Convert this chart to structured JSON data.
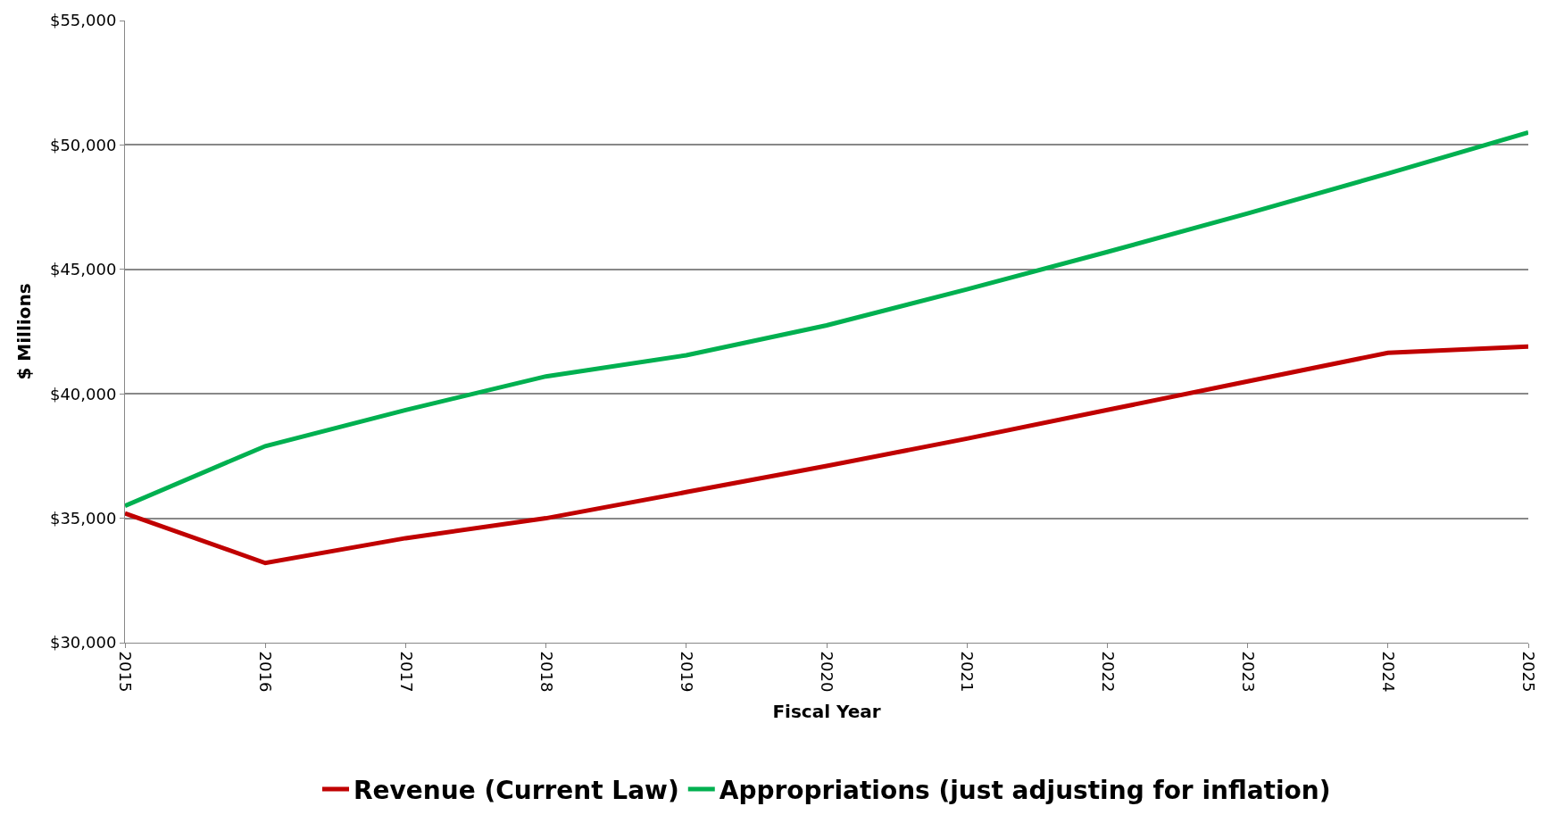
{
  "chart_data": {
    "type": "line",
    "xlabel": "Fiscal Year",
    "ylabel": "$ Millions",
    "x": [
      2015,
      2016,
      2017,
      2018,
      2019,
      2020,
      2021,
      2022,
      2023,
      2024,
      2025
    ],
    "series": [
      {
        "name": "Revenue (Current Law)",
        "color": "#c00000",
        "values": [
          35200,
          33200,
          34200,
          35000,
          36050,
          37100,
          38200,
          39350,
          40500,
          41650,
          41900
        ]
      },
      {
        "name": "Appropriations (just adjusting for inflation)",
        "color": "#00b050",
        "values": [
          35500,
          37900,
          39350,
          40700,
          41550,
          42750,
          44200,
          45700,
          47250,
          48850,
          50500
        ]
      }
    ],
    "xlim": [
      2015,
      2025
    ],
    "xticks": [
      2015,
      2016,
      2017,
      2018,
      2019,
      2020,
      2021,
      2022,
      2023,
      2024,
      2025
    ],
    "ylim": [
      30000,
      55000
    ],
    "yticks": [
      {
        "value": 30000,
        "label": "$30,000"
      },
      {
        "value": 35000,
        "label": "$35,000"
      },
      {
        "value": 40000,
        "label": "$40,000"
      },
      {
        "value": 45000,
        "label": "$45,000"
      },
      {
        "value": 50000,
        "label": "$50,000"
      },
      {
        "value": 55000,
        "label": "$55,000"
      }
    ],
    "grid": "y",
    "legend": "bottom",
    "marker": "none",
    "line_style": "solid"
  }
}
